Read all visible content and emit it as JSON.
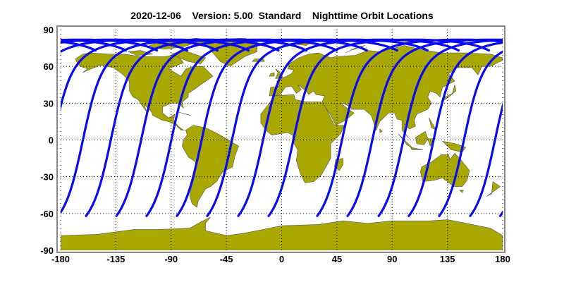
{
  "title": "2020-12-06    Version: 5.00  Standard    Nighttime Orbit Locations",
  "colors": {
    "land": "#a8a800",
    "orbit": "#0a0af0",
    "ocean": "#ffffff",
    "frame": "#888888",
    "grid": "#000000"
  },
  "chart_data": {
    "type": "map",
    "projection": "equirectangular",
    "xlim": [
      -180,
      180
    ],
    "ylim": [
      -90,
      90
    ],
    "grid": true,
    "x_ticks": [
      "-180",
      "-135",
      "-90",
      "-45",
      "0",
      "45",
      "90",
      "135",
      "180"
    ],
    "y_ticks": [
      "90",
      "60",
      "30",
      "0",
      "-30",
      "-60",
      "-90"
    ],
    "orbit_pass": "descending",
    "orbit_start_lat": 73,
    "orbit_max_lat": 81.8,
    "orbit_end_lat": -62,
    "orbit_end_lons": [
      -159.3,
      -134.6,
      -110,
      -85.3,
      -60.6,
      -35.3,
      -10.6,
      29,
      53.7,
      79,
      103.6,
      128.3,
      153.6,
      178
    ]
  }
}
